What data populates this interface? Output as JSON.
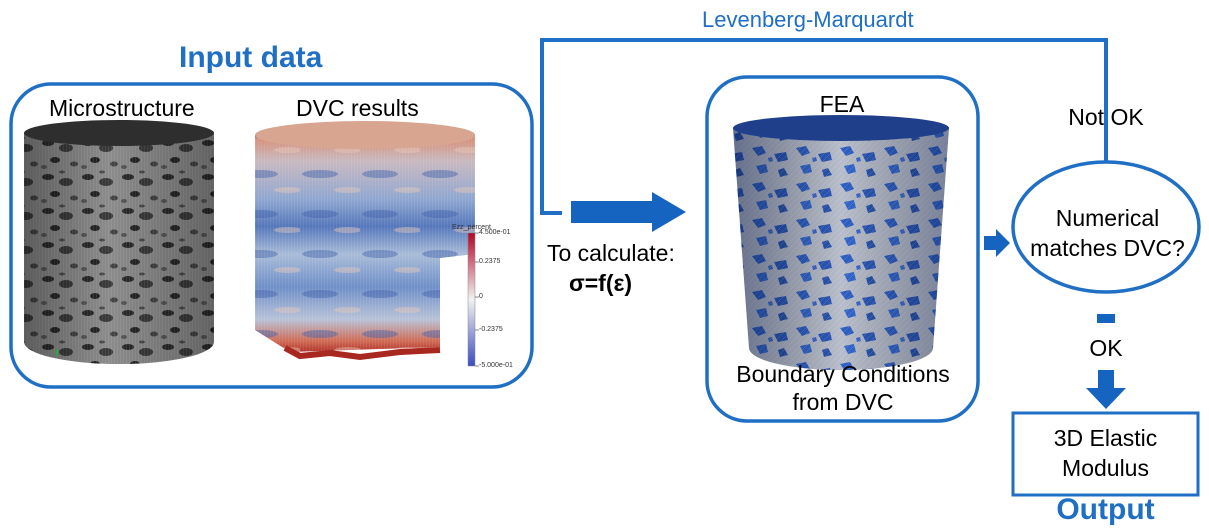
{
  "colors": {
    "accent": "#1f6fc5",
    "arrow": "#1565c0",
    "frame": "#1f6fc5",
    "micro_dark": "#2f2f2f",
    "micro_light": "#9a9a9a",
    "dvc_blue": "#4a6fb3",
    "dvc_red": "#c9463d",
    "fea_blue": "#2f5fc0",
    "fea_gray": "#b8bfcc"
  },
  "loop_label": "Levenberg-Marquardt",
  "input": {
    "title": "Input data",
    "microstructure_label": "Microstructure",
    "dvc_label": "DVC results",
    "colorbar": {
      "title": "Ezz_percent",
      "ticks": [
        "4.500e-01",
        "0.2375",
        "0",
        "-0.2375",
        "-5.000e-01"
      ]
    }
  },
  "calc": {
    "line1": "To calculate:",
    "line2": "σ=f(ε)"
  },
  "fea": {
    "title": "FEA",
    "caption_line1": "Boundary Conditions",
    "caption_line2": "from DVC"
  },
  "decision": {
    "line1": "Numerical",
    "line2": "matches DVC?",
    "not_ok": "Not OK",
    "ok": "OK"
  },
  "output": {
    "line1": "3D Elastic",
    "line2": "Modulus",
    "title": "Output"
  }
}
